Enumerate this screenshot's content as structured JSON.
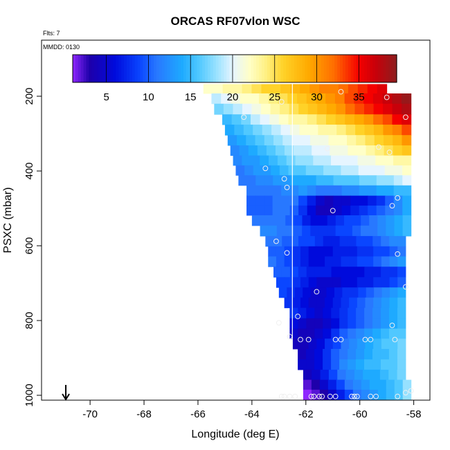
{
  "chart_data": {
    "type": "heatmap",
    "title": "ORCAS RF07vlon WSC",
    "flights_note": "Flts: 7",
    "date_note": "MMDD: 0130",
    "xlabel": "Longitude (deg E)",
    "ylabel": "PSXC (mbar)",
    "xlim": [
      -71.8,
      -57.4
    ],
    "ylim": [
      1013,
      50
    ],
    "x_ticks": [
      -70,
      -68,
      -66,
      -64,
      -62,
      -60,
      -58
    ],
    "y_ticks": [
      200,
      400,
      600,
      800,
      1000
    ],
    "colorbar": {
      "range": [
        1,
        39.5
      ],
      "ticks": [
        5,
        10,
        15,
        20,
        25,
        30,
        35
      ],
      "tick_labels": [
        "5",
        "10",
        "15",
        "20",
        "25",
        "30",
        "35"
      ]
    },
    "reference_line_lon": -62.5,
    "arrow_lon": -70.9,
    "rows": [
      {
        "p": 180,
        "lon_start": -65.8,
        "lon_end": -59.0,
        "values": [
          22,
          22,
          23,
          23,
          24,
          25,
          26,
          26,
          27,
          28,
          29,
          30,
          31,
          31,
          32,
          33,
          34,
          35,
          36
        ]
      },
      {
        "p": 205,
        "lon_start": -65.5,
        "lon_end": -58.1,
        "values": [
          19,
          20,
          21,
          22,
          22,
          23,
          24,
          25,
          26,
          27,
          28,
          29,
          30,
          31,
          33,
          34,
          35,
          36,
          37,
          38,
          39
        ]
      },
      {
        "p": 235,
        "lon_start": -65.4,
        "lon_end": -58.1,
        "values": [
          17,
          18,
          19,
          20,
          21,
          22,
          23,
          24,
          25,
          26,
          27,
          28,
          29,
          30,
          32,
          33,
          34,
          35,
          36,
          37,
          38
        ]
      },
      {
        "p": 262,
        "lon_start": -65.1,
        "lon_end": -58.1,
        "values": [
          15,
          16,
          17,
          19,
          20,
          21,
          22,
          23,
          23,
          24,
          25,
          26,
          27,
          28,
          29,
          30,
          32,
          33,
          35,
          36
        ]
      },
      {
        "p": 290,
        "lon_start": -65.0,
        "lon_end": -58.1,
        "values": [
          14,
          15,
          16,
          17,
          18,
          19,
          20,
          21,
          22,
          22,
          23,
          23,
          24,
          25,
          26,
          27,
          28,
          30,
          31,
          33
        ]
      },
      {
        "p": 318,
        "lon_start": -64.9,
        "lon_end": -58.1,
        "values": [
          13,
          14,
          15,
          16,
          17,
          18,
          19,
          20,
          20,
          21,
          21,
          22,
          22,
          23,
          24,
          25,
          26,
          27,
          28,
          30
        ]
      },
      {
        "p": 345,
        "lon_start": -64.8,
        "lon_end": -58.1,
        "values": [
          12,
          13,
          14,
          15,
          16,
          17,
          18,
          19,
          19,
          20,
          20,
          21,
          21,
          22,
          22,
          23,
          24,
          25,
          26,
          27
        ]
      },
      {
        "p": 372,
        "lon_start": -64.7,
        "lon_end": -58.1,
        "values": [
          12,
          13,
          13,
          14,
          15,
          16,
          17,
          18,
          18,
          19,
          19,
          20,
          20,
          20,
          21,
          21,
          22,
          22,
          23,
          23
        ]
      },
      {
        "p": 398,
        "lon_start": -64.6,
        "lon_end": -58.1,
        "values": [
          11,
          12,
          13,
          13,
          14,
          15,
          16,
          16,
          17,
          17,
          18,
          18,
          19,
          19,
          20,
          20,
          20,
          21,
          21,
          22
        ]
      },
      {
        "p": 425,
        "lon_start": -64.5,
        "lon_end": -58.1,
        "values": [
          11,
          11,
          12,
          12,
          13,
          13,
          14,
          14,
          14,
          15,
          15,
          16,
          16,
          16,
          17,
          17,
          18,
          18,
          19,
          20
        ]
      },
      {
        "p": 452,
        "lon_start": -64.2,
        "lon_end": -58.1,
        "values": [
          11,
          11,
          11,
          11,
          12,
          12,
          13,
          12,
          11,
          11,
          11,
          12,
          12,
          13,
          13,
          14,
          14,
          15,
          15
        ]
      },
      {
        "p": 480,
        "lon_start": -64.2,
        "lon_end": -58.1,
        "values": [
          10,
          10,
          10,
          11,
          11,
          11,
          9,
          7,
          5,
          4,
          5,
          5,
          6,
          6,
          7,
          8,
          10,
          12,
          14
        ]
      },
      {
        "p": 505,
        "lon_start": -64.2,
        "lon_end": -58.1,
        "values": [
          10,
          10,
          10,
          11,
          11,
          10,
          8,
          6,
          4,
          4,
          5,
          6,
          7,
          8,
          9,
          10,
          11,
          12,
          14
        ]
      },
      {
        "p": 532,
        "lon_start": -64.0,
        "lon_end": -58.1,
        "values": [
          11,
          11,
          11,
          11,
          10,
          9,
          7,
          6,
          6,
          7,
          8,
          9,
          9,
          10,
          11,
          12,
          13,
          14,
          15
        ]
      },
      {
        "p": 560,
        "lon_start": -63.7,
        "lon_end": -58.1,
        "values": [
          12,
          12,
          11,
          11,
          10,
          9,
          8,
          8,
          8,
          9,
          9,
          10,
          11,
          11,
          12,
          13,
          14,
          15
        ]
      },
      {
        "p": 588,
        "lon_start": -63.5,
        "lon_end": -58.3,
        "values": [
          11,
          11,
          10,
          10,
          9,
          9,
          8,
          7,
          7,
          8,
          8,
          9,
          9,
          10,
          11,
          12,
          12
        ]
      },
      {
        "p": 615,
        "lon_start": -63.4,
        "lon_end": -58.3,
        "values": [
          10,
          10,
          9,
          8,
          7,
          6,
          6,
          6,
          7,
          7,
          7,
          8,
          8,
          9,
          9,
          10,
          11
        ]
      },
      {
        "p": 642,
        "lon_start": -63.4,
        "lon_end": -58.3,
        "values": [
          11,
          10,
          9,
          8,
          7,
          6,
          6,
          7,
          7,
          8,
          8,
          9,
          9,
          10,
          11,
          12,
          13
        ]
      },
      {
        "p": 670,
        "lon_start": -63.2,
        "lon_end": -58.3,
        "values": [
          10,
          10,
          9,
          8,
          7,
          7,
          7,
          6,
          6,
          6,
          6,
          7,
          7,
          8,
          8,
          9
        ]
      },
      {
        "p": 698,
        "lon_start": -63.1,
        "lon_end": -58.3,
        "values": [
          9,
          9,
          8,
          7,
          6,
          5,
          5,
          5,
          6,
          6,
          7,
          7,
          8,
          8,
          9,
          10
        ]
      },
      {
        "p": 725,
        "lon_start": -63.0,
        "lon_end": -58.3,
        "values": [
          9,
          8,
          7,
          6,
          5,
          5,
          6,
          7,
          8,
          8,
          9,
          10,
          11,
          12,
          13,
          14
        ]
      },
      {
        "p": 752,
        "lon_start": -62.8,
        "lon_end": -58.3,
        "values": [
          8,
          7,
          6,
          5,
          5,
          6,
          7,
          8,
          9,
          10,
          11,
          12,
          13,
          14,
          15
        ]
      },
      {
        "p": 780,
        "lon_start": -62.6,
        "lon_end": -58.3,
        "values": [
          8,
          7,
          6,
          5,
          6,
          7,
          8,
          9,
          10,
          11,
          12,
          13,
          14,
          15
        ]
      },
      {
        "p": 808,
        "lon_start": -62.6,
        "lon_end": -58.3,
        "values": [
          6,
          5,
          4,
          4,
          5,
          6,
          8,
          9,
          10,
          11,
          12,
          13,
          14,
          15
        ]
      },
      {
        "p": 835,
        "lon_start": -62.6,
        "lon_end": -58.3,
        "values": [
          5,
          4,
          4,
          5,
          6,
          8,
          10,
          11,
          12,
          13,
          14,
          15,
          16,
          16
        ]
      },
      {
        "p": 862,
        "lon_start": -62.5,
        "lon_end": -58.3,
        "values": [
          4,
          4,
          5,
          6,
          8,
          9,
          11,
          12,
          13,
          14,
          15,
          16,
          16,
          17
        ]
      },
      {
        "p": 890,
        "lon_start": -62.3,
        "lon_end": -58.3,
        "values": [
          4,
          5,
          6,
          8,
          10,
          11,
          12,
          13,
          14,
          15,
          15,
          16,
          17
        ]
      },
      {
        "p": 918,
        "lon_start": -62.3,
        "lon_end": -58.3,
        "values": [
          5,
          5,
          6,
          8,
          10,
          12,
          13,
          14,
          15,
          15,
          16,
          16,
          17
        ]
      },
      {
        "p": 945,
        "lon_start": -62.1,
        "lon_end": -58.3,
        "values": [
          4,
          5,
          7,
          9,
          11,
          12,
          13,
          14,
          14,
          15,
          16,
          17
        ]
      },
      {
        "p": 972,
        "lon_start": -62.1,
        "lon_end": -58.1,
        "values": [
          2,
          3,
          5,
          7,
          9,
          11,
          12,
          13,
          14,
          14,
          15,
          16,
          18
        ]
      },
      {
        "p": 998,
        "lon_start": -62.1,
        "lon_end": -58.1,
        "values": [
          1,
          2,
          3,
          5,
          7,
          9,
          11,
          12,
          13,
          14,
          15,
          16,
          18
        ]
      }
    ],
    "observations": [
      {
        "lon": -60.7,
        "p": 188
      },
      {
        "lon": -59.0,
        "p": 203
      },
      {
        "lon": -62.9,
        "p": 215
      },
      {
        "lon": -64.3,
        "p": 256
      },
      {
        "lon": -58.3,
        "p": 256
      },
      {
        "lon": -59.3,
        "p": 336
      },
      {
        "lon": -61.2,
        "p": 340
      },
      {
        "lon": -58.9,
        "p": 350
      },
      {
        "lon": -63.5,
        "p": 393
      },
      {
        "lon": -62.8,
        "p": 421
      },
      {
        "lon": -62.7,
        "p": 444
      },
      {
        "lon": -58.6,
        "p": 472
      },
      {
        "lon": -58.8,
        "p": 493
      },
      {
        "lon": -61.0,
        "p": 506
      },
      {
        "lon": -63.1,
        "p": 588
      },
      {
        "lon": -62.7,
        "p": 619
      },
      {
        "lon": -58.6,
        "p": 622
      },
      {
        "lon": -61.6,
        "p": 723
      },
      {
        "lon": -58.3,
        "p": 710
      },
      {
        "lon": -62.3,
        "p": 789
      },
      {
        "lon": -63.0,
        "p": 806
      },
      {
        "lon": -58.8,
        "p": 813
      },
      {
        "lon": -62.6,
        "p": 843
      },
      {
        "lon": -62.2,
        "p": 851
      },
      {
        "lon": -61.9,
        "p": 851
      },
      {
        "lon": -60.9,
        "p": 851
      },
      {
        "lon": -60.7,
        "p": 851
      },
      {
        "lon": -59.8,
        "p": 851
      },
      {
        "lon": -59.6,
        "p": 851
      },
      {
        "lon": -58.7,
        "p": 851
      },
      {
        "lon": -62.9,
        "p": 1003
      },
      {
        "lon": -62.8,
        "p": 1003
      },
      {
        "lon": -62.6,
        "p": 1003
      },
      {
        "lon": -62.4,
        "p": 1003
      },
      {
        "lon": -61.8,
        "p": 1003
      },
      {
        "lon": -61.7,
        "p": 1003
      },
      {
        "lon": -61.5,
        "p": 1003
      },
      {
        "lon": -61.4,
        "p": 1003
      },
      {
        "lon": -61.1,
        "p": 1003
      },
      {
        "lon": -60.9,
        "p": 1003
      },
      {
        "lon": -60.3,
        "p": 1003
      },
      {
        "lon": -60.2,
        "p": 1003
      },
      {
        "lon": -60.1,
        "p": 1003
      },
      {
        "lon": -59.6,
        "p": 1003
      },
      {
        "lon": -59.4,
        "p": 1003
      },
      {
        "lon": -58.6,
        "p": 1003
      },
      {
        "lon": -58.3,
        "p": 993
      },
      {
        "lon": -58.1,
        "p": 988
      }
    ]
  }
}
